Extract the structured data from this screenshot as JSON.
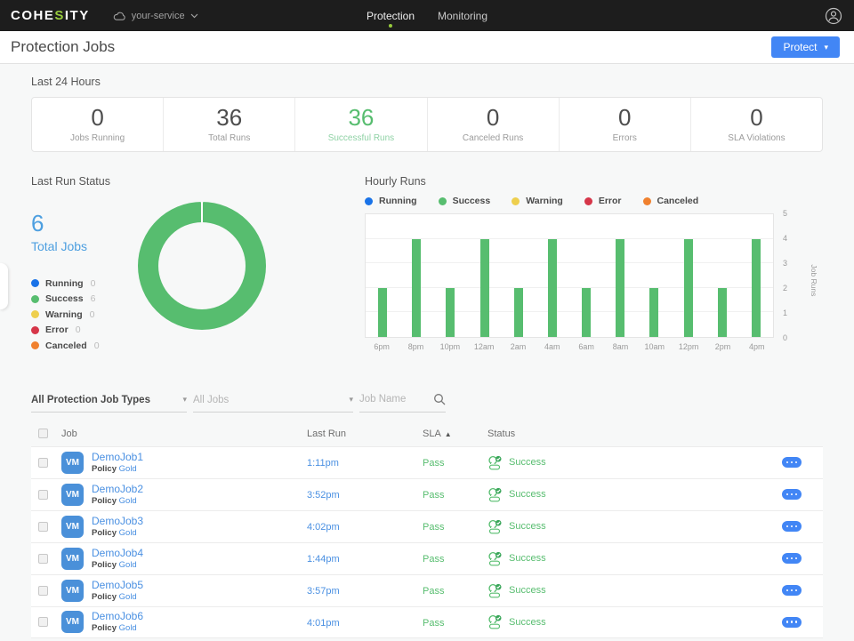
{
  "navbar": {
    "logo_prefix": "COHE",
    "logo_green": "S",
    "logo_suffix": "ITY",
    "cluster_label": "your-service",
    "links": [
      {
        "label": "Protection",
        "active": true
      },
      {
        "label": "Monitoring",
        "active": false
      }
    ]
  },
  "header": {
    "title": "Protection Jobs",
    "protect_label": "Protect"
  },
  "stats": {
    "title": "Last 24 Hours",
    "items": [
      {
        "value": "0",
        "label": "Jobs Running"
      },
      {
        "value": "36",
        "label": "Total Runs"
      },
      {
        "value": "36",
        "label": "Successful Runs"
      },
      {
        "value": "0",
        "label": "Canceled Runs"
      },
      {
        "value": "0",
        "label": "Errors"
      },
      {
        "value": "0",
        "label": "SLA Violations"
      }
    ]
  },
  "filters": {
    "job_type_value": "All Protection Job Types",
    "jobs_placeholder": "All Jobs",
    "search_placeholder": "Job Name"
  },
  "table": {
    "headers": {
      "job": "Job",
      "last_run": "Last Run",
      "sla": "SLA",
      "status": "Status"
    },
    "rows": [
      {
        "type": "VM",
        "name": "DemoJob1",
        "policy_label": "Policy",
        "policy": "Gold",
        "last_run": "1:11pm",
        "sla": "Pass",
        "status": "Success"
      },
      {
        "type": "VM",
        "name": "DemoJob2",
        "policy_label": "Policy",
        "policy": "Gold",
        "last_run": "3:52pm",
        "sla": "Pass",
        "status": "Success"
      },
      {
        "type": "VM",
        "name": "DemoJob3",
        "policy_label": "Policy",
        "policy": "Gold",
        "last_run": "4:02pm",
        "sla": "Pass",
        "status": "Success"
      },
      {
        "type": "VM",
        "name": "DemoJob4",
        "policy_label": "Policy",
        "policy": "Gold",
        "last_run": "1:44pm",
        "sla": "Pass",
        "status": "Success"
      },
      {
        "type": "VM",
        "name": "DemoJob5",
        "policy_label": "Policy",
        "policy": "Gold",
        "last_run": "3:57pm",
        "sla": "Pass",
        "status": "Success"
      },
      {
        "type": "VM",
        "name": "DemoJob6",
        "policy_label": "Policy",
        "policy": "Gold",
        "last_run": "4:01pm",
        "sla": "Pass",
        "status": "Success"
      }
    ]
  },
  "chart_data": [
    {
      "type": "pie",
      "variant": "donut",
      "title": "Last Run Status",
      "total_value": "6",
      "total_label": "Total Jobs",
      "categories": [
        "Running",
        "Success",
        "Warning",
        "Error",
        "Canceled"
      ],
      "values": [
        0,
        6,
        0,
        0,
        0
      ],
      "colors": [
        "#1a73e8",
        "#57bd6f",
        "#eecf4e",
        "#d63649",
        "#f0812f"
      ],
      "legend_position": "left"
    },
    {
      "type": "bar",
      "title": "Hourly Runs",
      "categories": [
        "6pm",
        "8pm",
        "10pm",
        "12am",
        "2am",
        "4am",
        "6am",
        "8am",
        "10am",
        "12pm",
        "2pm",
        "4pm"
      ],
      "series": [
        {
          "name": "Success",
          "color": "#57bd6f",
          "values": [
            2,
            4,
            2,
            4,
            2,
            4,
            2,
            4,
            2,
            4,
            2,
            4
          ]
        }
      ],
      "legend": [
        "Running",
        "Success",
        "Warning",
        "Error",
        "Canceled"
      ],
      "legend_colors": [
        "#1a73e8",
        "#57bd6f",
        "#eecf4e",
        "#d63649",
        "#f0812f"
      ],
      "xlabel": "",
      "ylabel": "Job Runs",
      "ylim": [
        0,
        5
      ],
      "yticks": [
        0,
        1,
        2,
        3,
        4,
        5
      ],
      "grid": true,
      "legend_position": "top",
      "yaxis_side": "right"
    }
  ],
  "colors": {
    "lime": "#97ca3d",
    "blue": "#4286f5",
    "success": "#57bd6f",
    "running": "#1a73e8",
    "warning": "#eecf4e",
    "error": "#d63649",
    "canceled": "#f0812f",
    "link": "#4a90e2",
    "page_bg": "#f7f8f8",
    "navbar_bg": "#1d1d1d"
  }
}
